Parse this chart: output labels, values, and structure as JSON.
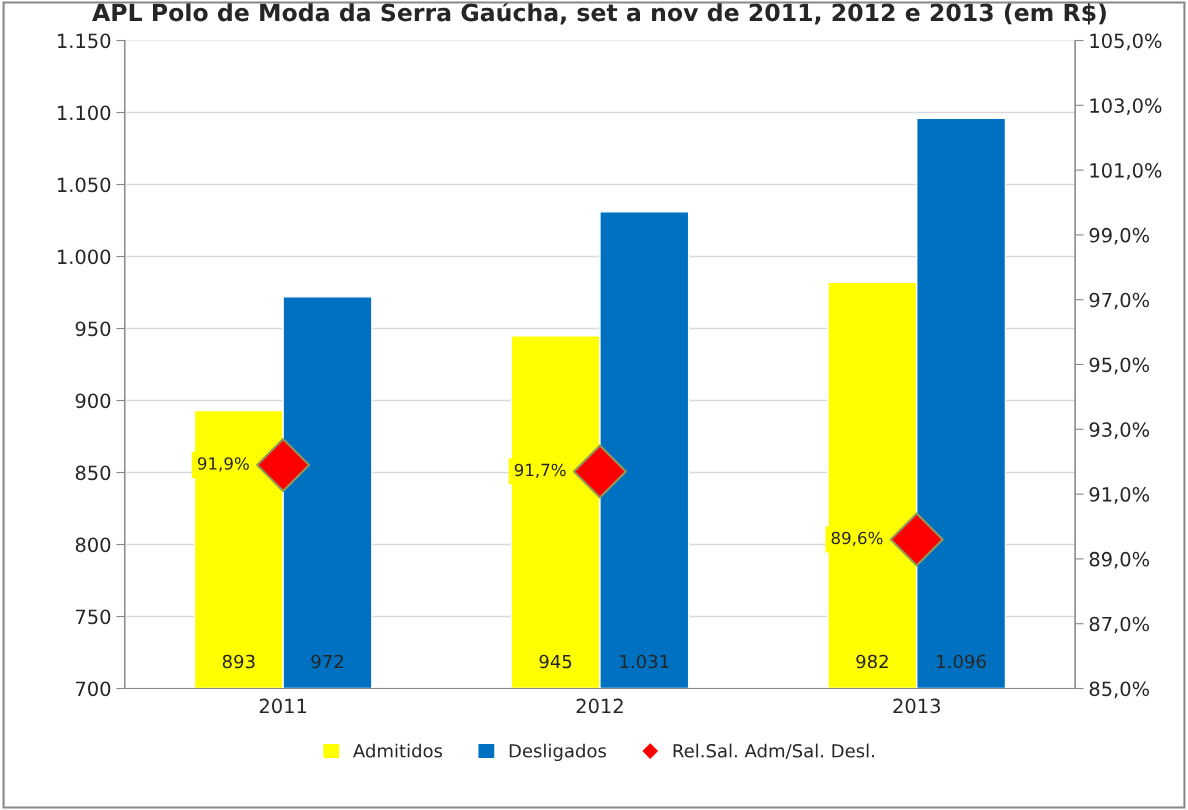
{
  "chart_data": {
    "type": "bar",
    "title": "APL Polo de Moda da Serra Gaúcha, set a nov de 2011, 2012 e 2013 (em R$)",
    "categories": [
      "2011",
      "2012",
      "2013"
    ],
    "series": [
      {
        "name": "Admitidos",
        "color": "#ffff00",
        "values": [
          893,
          945,
          982
        ],
        "value_labels": [
          "893",
          "945",
          "982"
        ]
      },
      {
        "name": "Desligados",
        "color": "#0070c0",
        "values": [
          972,
          1031,
          1096
        ],
        "value_labels": [
          "972",
          "1.031",
          "1.096"
        ]
      },
      {
        "name": "Rel.Sal. Adm/Sal. Desl.",
        "type": "scatter",
        "axis": "y2",
        "marker": "diamond",
        "color": "#ff0000",
        "values": [
          91.9,
          91.7,
          89.6
        ],
        "value_labels": [
          "91,9%",
          "91,7%",
          "89,6%"
        ]
      }
    ],
    "ylim": [
      700,
      1150
    ],
    "yticks": [
      {
        "value": 700,
        "label": "700"
      },
      {
        "value": 750,
        "label": "750"
      },
      {
        "value": 800,
        "label": "800"
      },
      {
        "value": 850,
        "label": "850"
      },
      {
        "value": 900,
        "label": "900"
      },
      {
        "value": 950,
        "label": "950"
      },
      {
        "value": 1000,
        "label": "1.000"
      },
      {
        "value": 1050,
        "label": "1.050"
      },
      {
        "value": 1100,
        "label": "1.100"
      },
      {
        "value": 1150,
        "label": "1.150"
      }
    ],
    "y2lim": [
      85,
      105
    ],
    "y2ticks": [
      {
        "value": 85,
        "label": "85,0%"
      },
      {
        "value": 87,
        "label": "87,0%"
      },
      {
        "value": 89,
        "label": "89,0%"
      },
      {
        "value": 91,
        "label": "91,0%"
      },
      {
        "value": 93,
        "label": "93,0%"
      },
      {
        "value": 95,
        "label": "95,0%"
      },
      {
        "value": 97,
        "label": "97,0%"
      },
      {
        "value": 99,
        "label": "99,0%"
      },
      {
        "value": 101,
        "label": "101,0%"
      },
      {
        "value": 103,
        "label": "103,0%"
      },
      {
        "value": 105,
        "label": "105,0%"
      }
    ],
    "grid": "y",
    "legend": "bottom"
  }
}
